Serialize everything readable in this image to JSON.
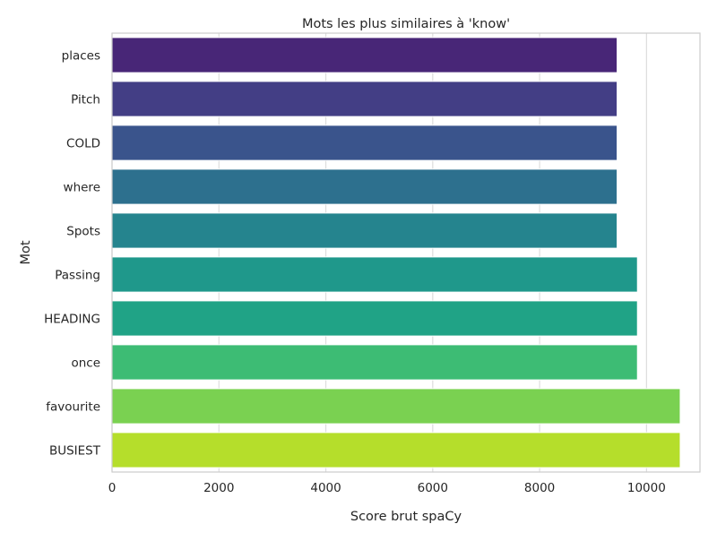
{
  "chart_data": {
    "type": "bar",
    "orientation": "horizontal",
    "title": "Mots les plus similaires à 'know'",
    "xlabel": "Score brut spaCy",
    "ylabel": "Mot",
    "categories": [
      "places",
      "Pitch",
      "COLD",
      "where",
      "Spots",
      "Passing",
      "HEADING",
      "once",
      "favourite",
      "BUSIEST"
    ],
    "values": [
      9450,
      9450,
      9450,
      9450,
      9450,
      9830,
      9830,
      9830,
      10630,
      10630
    ],
    "xlim": [
      0,
      11000
    ],
    "xticks": [
      0,
      2000,
      4000,
      6000,
      8000,
      10000
    ],
    "grid": true,
    "colors": [
      "#482677",
      "#433e85",
      "#3a548c",
      "#2d708e",
      "#25848e",
      "#1f988b",
      "#20a386",
      "#3dbc74",
      "#7ad151",
      "#b5de2b"
    ]
  }
}
